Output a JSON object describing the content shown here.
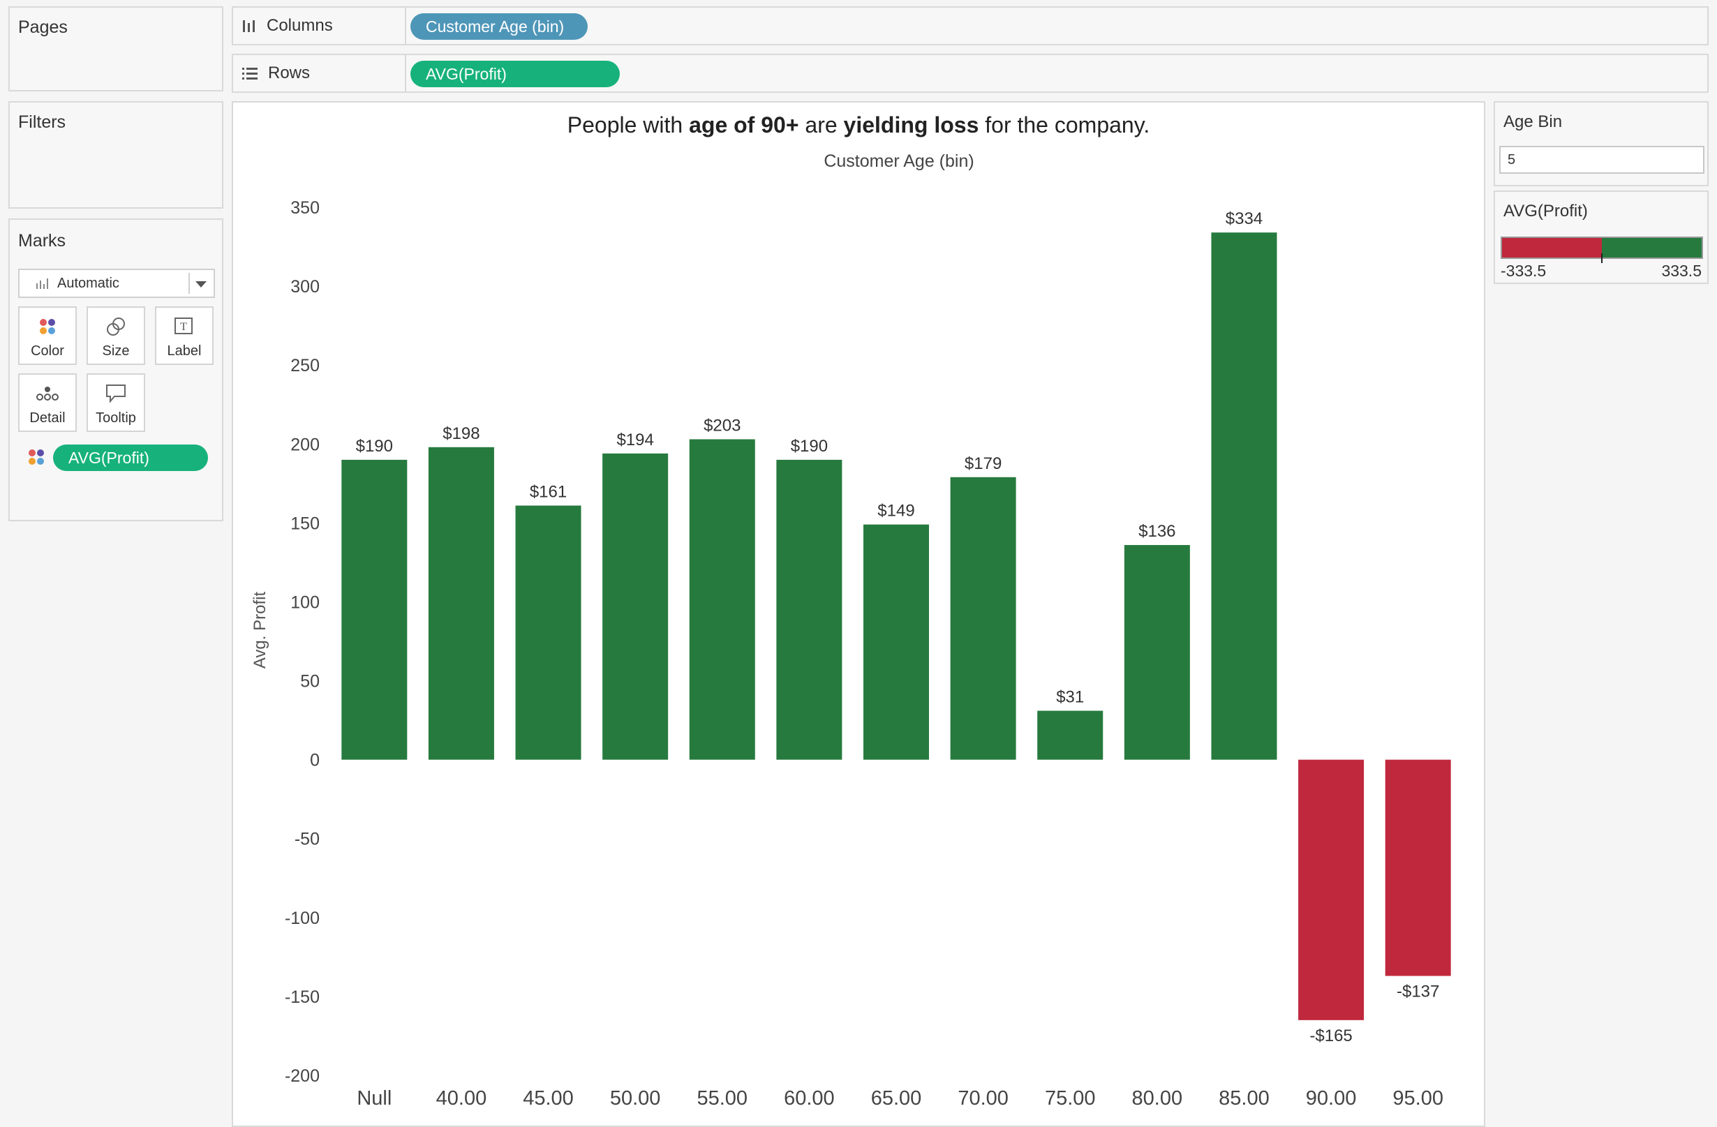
{
  "sidebar": {
    "pages_label": "Pages",
    "filters_label": "Filters",
    "marks_label": "Marks",
    "mark_type": "Automatic",
    "mark_buttons": {
      "color": "Color",
      "size": "Size",
      "label": "Label",
      "detail": "Detail",
      "tooltip": "Tooltip"
    },
    "color_pill": "AVG(Profit)"
  },
  "shelves": {
    "columns_label": "Columns",
    "columns_pill": "Customer Age (bin)",
    "rows_label": "Rows",
    "rows_pill": "AVG(Profit)"
  },
  "legend": {
    "age_bin_title": "Age Bin",
    "age_bin_value": "5",
    "profit_title": "AVG(Profit)",
    "profit_min": "-333.5",
    "profit_max": "333.5"
  },
  "title": {
    "p1": "People with ",
    "b1": "age of 90+",
    "p2": " are ",
    "b2": "yielding loss",
    "p3": " for the company."
  },
  "colors": {
    "positive": "#267a3e",
    "negative": "#c0283d"
  },
  "chart_data": {
    "type": "bar",
    "xlabel": "Customer Age (bin)",
    "ylabel": "Avg. Profit",
    "ylim": [
      -200,
      350
    ],
    "yticks": [
      350,
      300,
      250,
      200,
      150,
      100,
      50,
      0,
      -50,
      -100,
      -150,
      -200
    ],
    "categories": [
      "Null",
      "40.00",
      "45.00",
      "50.00",
      "55.00",
      "60.00",
      "65.00",
      "70.00",
      "75.00",
      "80.00",
      "85.00",
      "90.00",
      "95.00"
    ],
    "values": [
      190,
      198,
      161,
      194,
      203,
      190,
      149,
      179,
      31,
      136,
      334,
      -165,
      -137
    ],
    "labels": [
      "$190",
      "$198",
      "$161",
      "$194",
      "$203",
      "$190",
      "$149",
      "$179",
      "$31",
      "$136",
      "$334",
      "-$165",
      "-$137"
    ]
  }
}
